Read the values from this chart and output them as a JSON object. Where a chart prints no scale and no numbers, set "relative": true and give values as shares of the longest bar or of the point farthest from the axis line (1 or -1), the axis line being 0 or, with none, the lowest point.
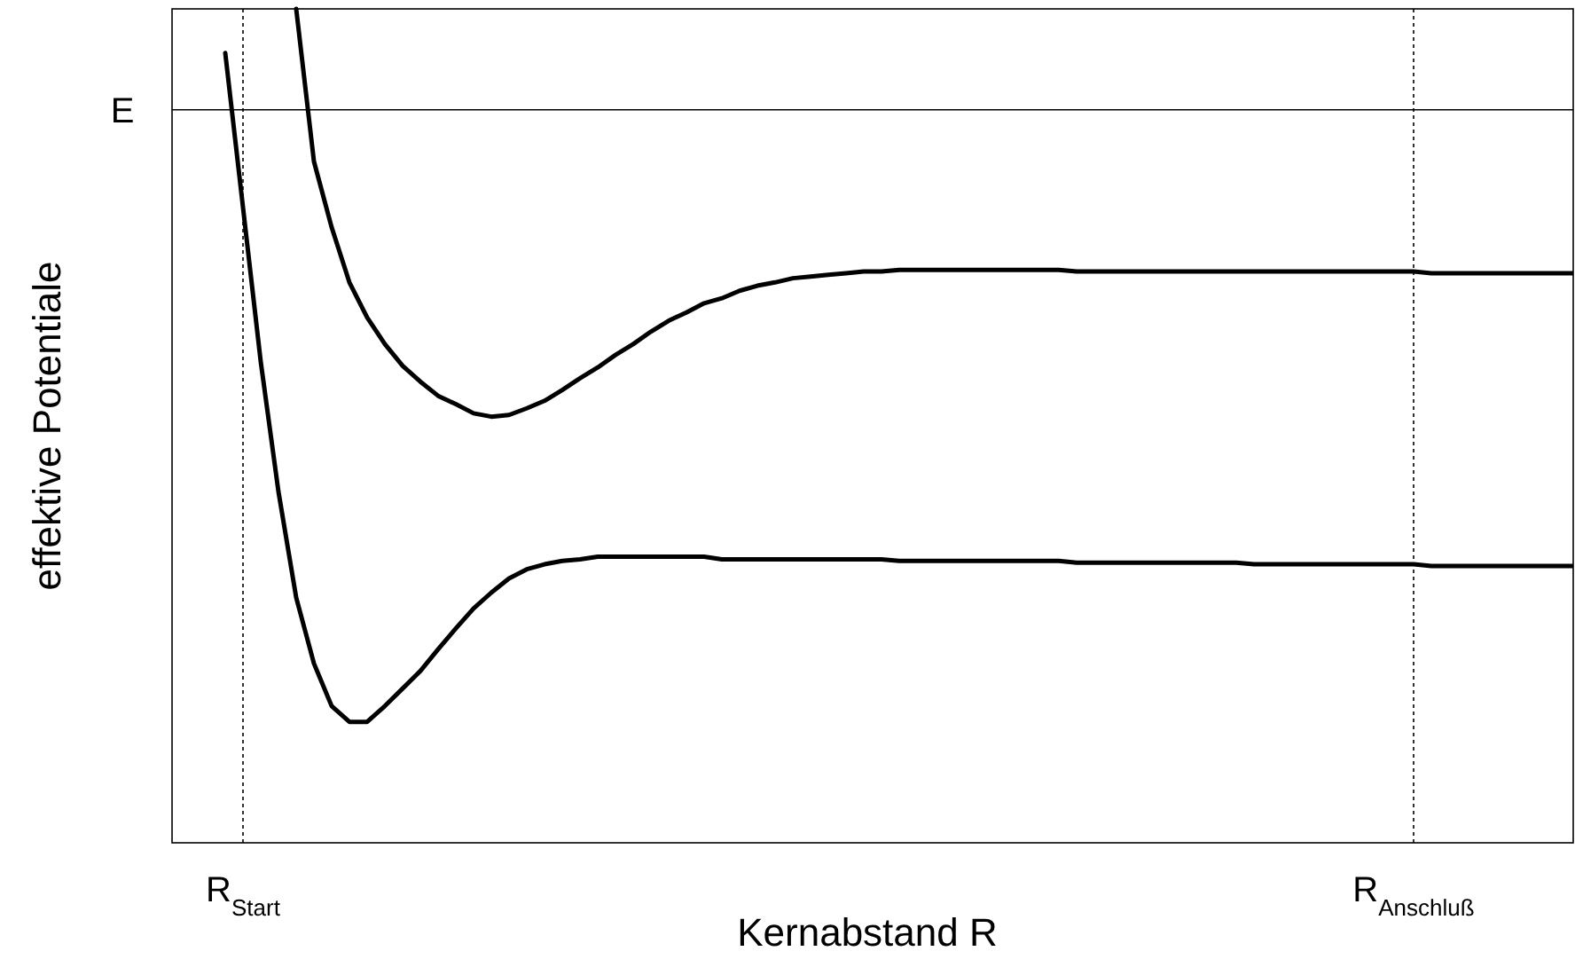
{
  "chart_data": {
    "type": "line",
    "xlabel": "Kernabstand R",
    "ylabel": "effektive Potentiale",
    "relative": true,
    "grid": "x",
    "marker": "none",
    "line_style": "solid",
    "categories": [
      null,
      null,
      null,
      null,
      "R$_{Start}$",
      null,
      null,
      null,
      null,
      null,
      null,
      null,
      null,
      null,
      null,
      null,
      null,
      null,
      null,
      null,
      null,
      null,
      null,
      null,
      null,
      null,
      null,
      null,
      null,
      null,
      null,
      null,
      null,
      null,
      null,
      null,
      null,
      null,
      null,
      null,
      null,
      null,
      null,
      null,
      null,
      null,
      null,
      null,
      null,
      null,
      null,
      null,
      null,
      null,
      null,
      null,
      null,
      null,
      null,
      null,
      null,
      null,
      null,
      null,
      null,
      null,
      null,
      null,
      null,
      null,
      "R$_{Anschluß}$",
      null,
      null,
      null,
      null,
      null,
      null,
      null,
      null,
      null
    ],
    "series": [
      {
        "color": "#000000",
        "values": [
          null,
          null,
          null,
          0.947,
          0.762,
          0.577,
          0.421,
          0.294,
          0.215,
          0.164,
          0.145,
          0.145,
          0.164,
          0.185,
          0.206,
          0.232,
          0.257,
          0.281,
          0.3,
          0.317,
          0.328,
          0.334,
          0.338,
          0.34,
          0.343,
          0.343,
          0.343,
          0.343,
          0.343,
          0.343,
          0.343,
          0.34,
          0.34,
          0.34,
          0.34,
          0.34,
          0.34,
          0.34,
          0.34,
          0.34,
          0.34,
          0.338,
          0.338,
          0.338,
          0.338,
          0.338,
          0.338,
          0.338,
          0.338,
          0.338,
          0.338,
          0.336,
          0.336,
          0.336,
          0.336,
          0.336,
          0.336,
          0.336,
          0.336,
          0.336,
          0.336,
          0.334,
          0.334,
          0.334,
          0.334,
          0.334,
          0.334,
          0.334,
          0.334,
          0.334,
          0.334,
          0.332,
          0.332,
          0.332,
          0.332,
          0.332,
          0.332,
          0.332,
          0.332,
          0.332
        ]
      },
      {
        "color": "#000000",
        "values": [
          null,
          null,
          null,
          null,
          null,
          null,
          null,
          1.0,
          0.817,
          0.738,
          0.672,
          0.63,
          0.598,
          0.572,
          0.553,
          0.536,
          0.526,
          0.515,
          0.511,
          0.513,
          0.521,
          0.53,
          0.543,
          0.557,
          0.57,
          0.585,
          0.598,
          0.613,
          0.626,
          0.636,
          0.647,
          0.653,
          0.662,
          0.668,
          0.672,
          0.677,
          0.679,
          0.681,
          0.683,
          0.685,
          0.685,
          0.687,
          0.687,
          0.687,
          0.687,
          0.687,
          0.687,
          0.687,
          0.687,
          0.687,
          0.687,
          0.685,
          0.685,
          0.685,
          0.685,
          0.685,
          0.685,
          0.685,
          0.685,
          0.685,
          0.685,
          0.685,
          0.685,
          0.685,
          0.685,
          0.685,
          0.685,
          0.685,
          0.685,
          0.685,
          0.685,
          0.683,
          0.683,
          0.683,
          0.683,
          0.683,
          0.683,
          0.683,
          0.683,
          0.683
        ]
      }
    ],
    "ref_lines": [
      {
        "axis": "y",
        "value": 0.879,
        "label": "E",
        "color": "#000000",
        "line_style": "solid"
      }
    ]
  }
}
